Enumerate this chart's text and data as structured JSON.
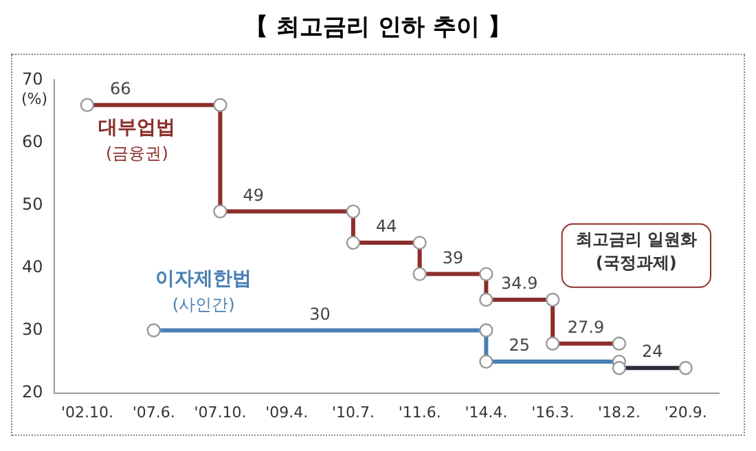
{
  "chart_data": {
    "type": "line",
    "title": "【 최고금리 인하 추이 】",
    "ylabel": "(%)",
    "categories": [
      "'02.10.",
      "'07.6.",
      "'07.10.",
      "'09.4.",
      "'10.7.",
      "'11.6.",
      "'14.4.",
      "'16.3.",
      "'18.2.",
      "'20.9."
    ],
    "series": [
      {
        "name": "대부업법 (금융권)",
        "color": "#8b2e2b",
        "x": [
          "'02.10.",
          "'07.10.",
          "'07.10.",
          "'10.7.",
          "'10.7.",
          "'11.6.",
          "'11.6.",
          "'14.4.",
          "'14.4.",
          "'16.3.",
          "'16.3.",
          "'18.2."
        ],
        "values": [
          66,
          66,
          49,
          49,
          44,
          44,
          39,
          39,
          34.9,
          34.9,
          27.9,
          27.9
        ]
      },
      {
        "name": "이자제한법 (사인간)",
        "color": "#4a7fb5",
        "x": [
          "'07.6.",
          "'14.4.",
          "'14.4.",
          "'18.2."
        ],
        "values": [
          30,
          30,
          25,
          25
        ]
      },
      {
        "color": "#2b2b3b",
        "x": [
          "'18.2.",
          "'20.9."
        ],
        "values": [
          24,
          24
        ]
      }
    ],
    "annotations": [
      {
        "text": "66",
        "x": "'02.10.",
        "y": 66
      },
      {
        "text": "49",
        "x": "'07.10.",
        "y": 49
      },
      {
        "text": "44",
        "x": "'10.7.",
        "y": 44
      },
      {
        "text": "39",
        "x": "'11.6.",
        "y": 39
      },
      {
        "text": "34.9",
        "x": "'14.4.",
        "y": 34.9
      },
      {
        "text": "27.9",
        "x": "'16.3.",
        "y": 27.9
      },
      {
        "text": "30",
        "x": "'09.4.",
        "y": 30
      },
      {
        "text": "25",
        "x": "'14.4.",
        "y": 25
      },
      {
        "text": "24",
        "x": "'18.2.",
        "y": 24
      },
      "최고금리 일원화 (국정과제)"
    ],
    "ylim": [
      20,
      70
    ],
    "yticks": [
      20,
      30,
      40,
      50,
      60,
      70
    ],
    "grid": false,
    "legend": false,
    "marker": "circle",
    "line_style": "solid"
  }
}
